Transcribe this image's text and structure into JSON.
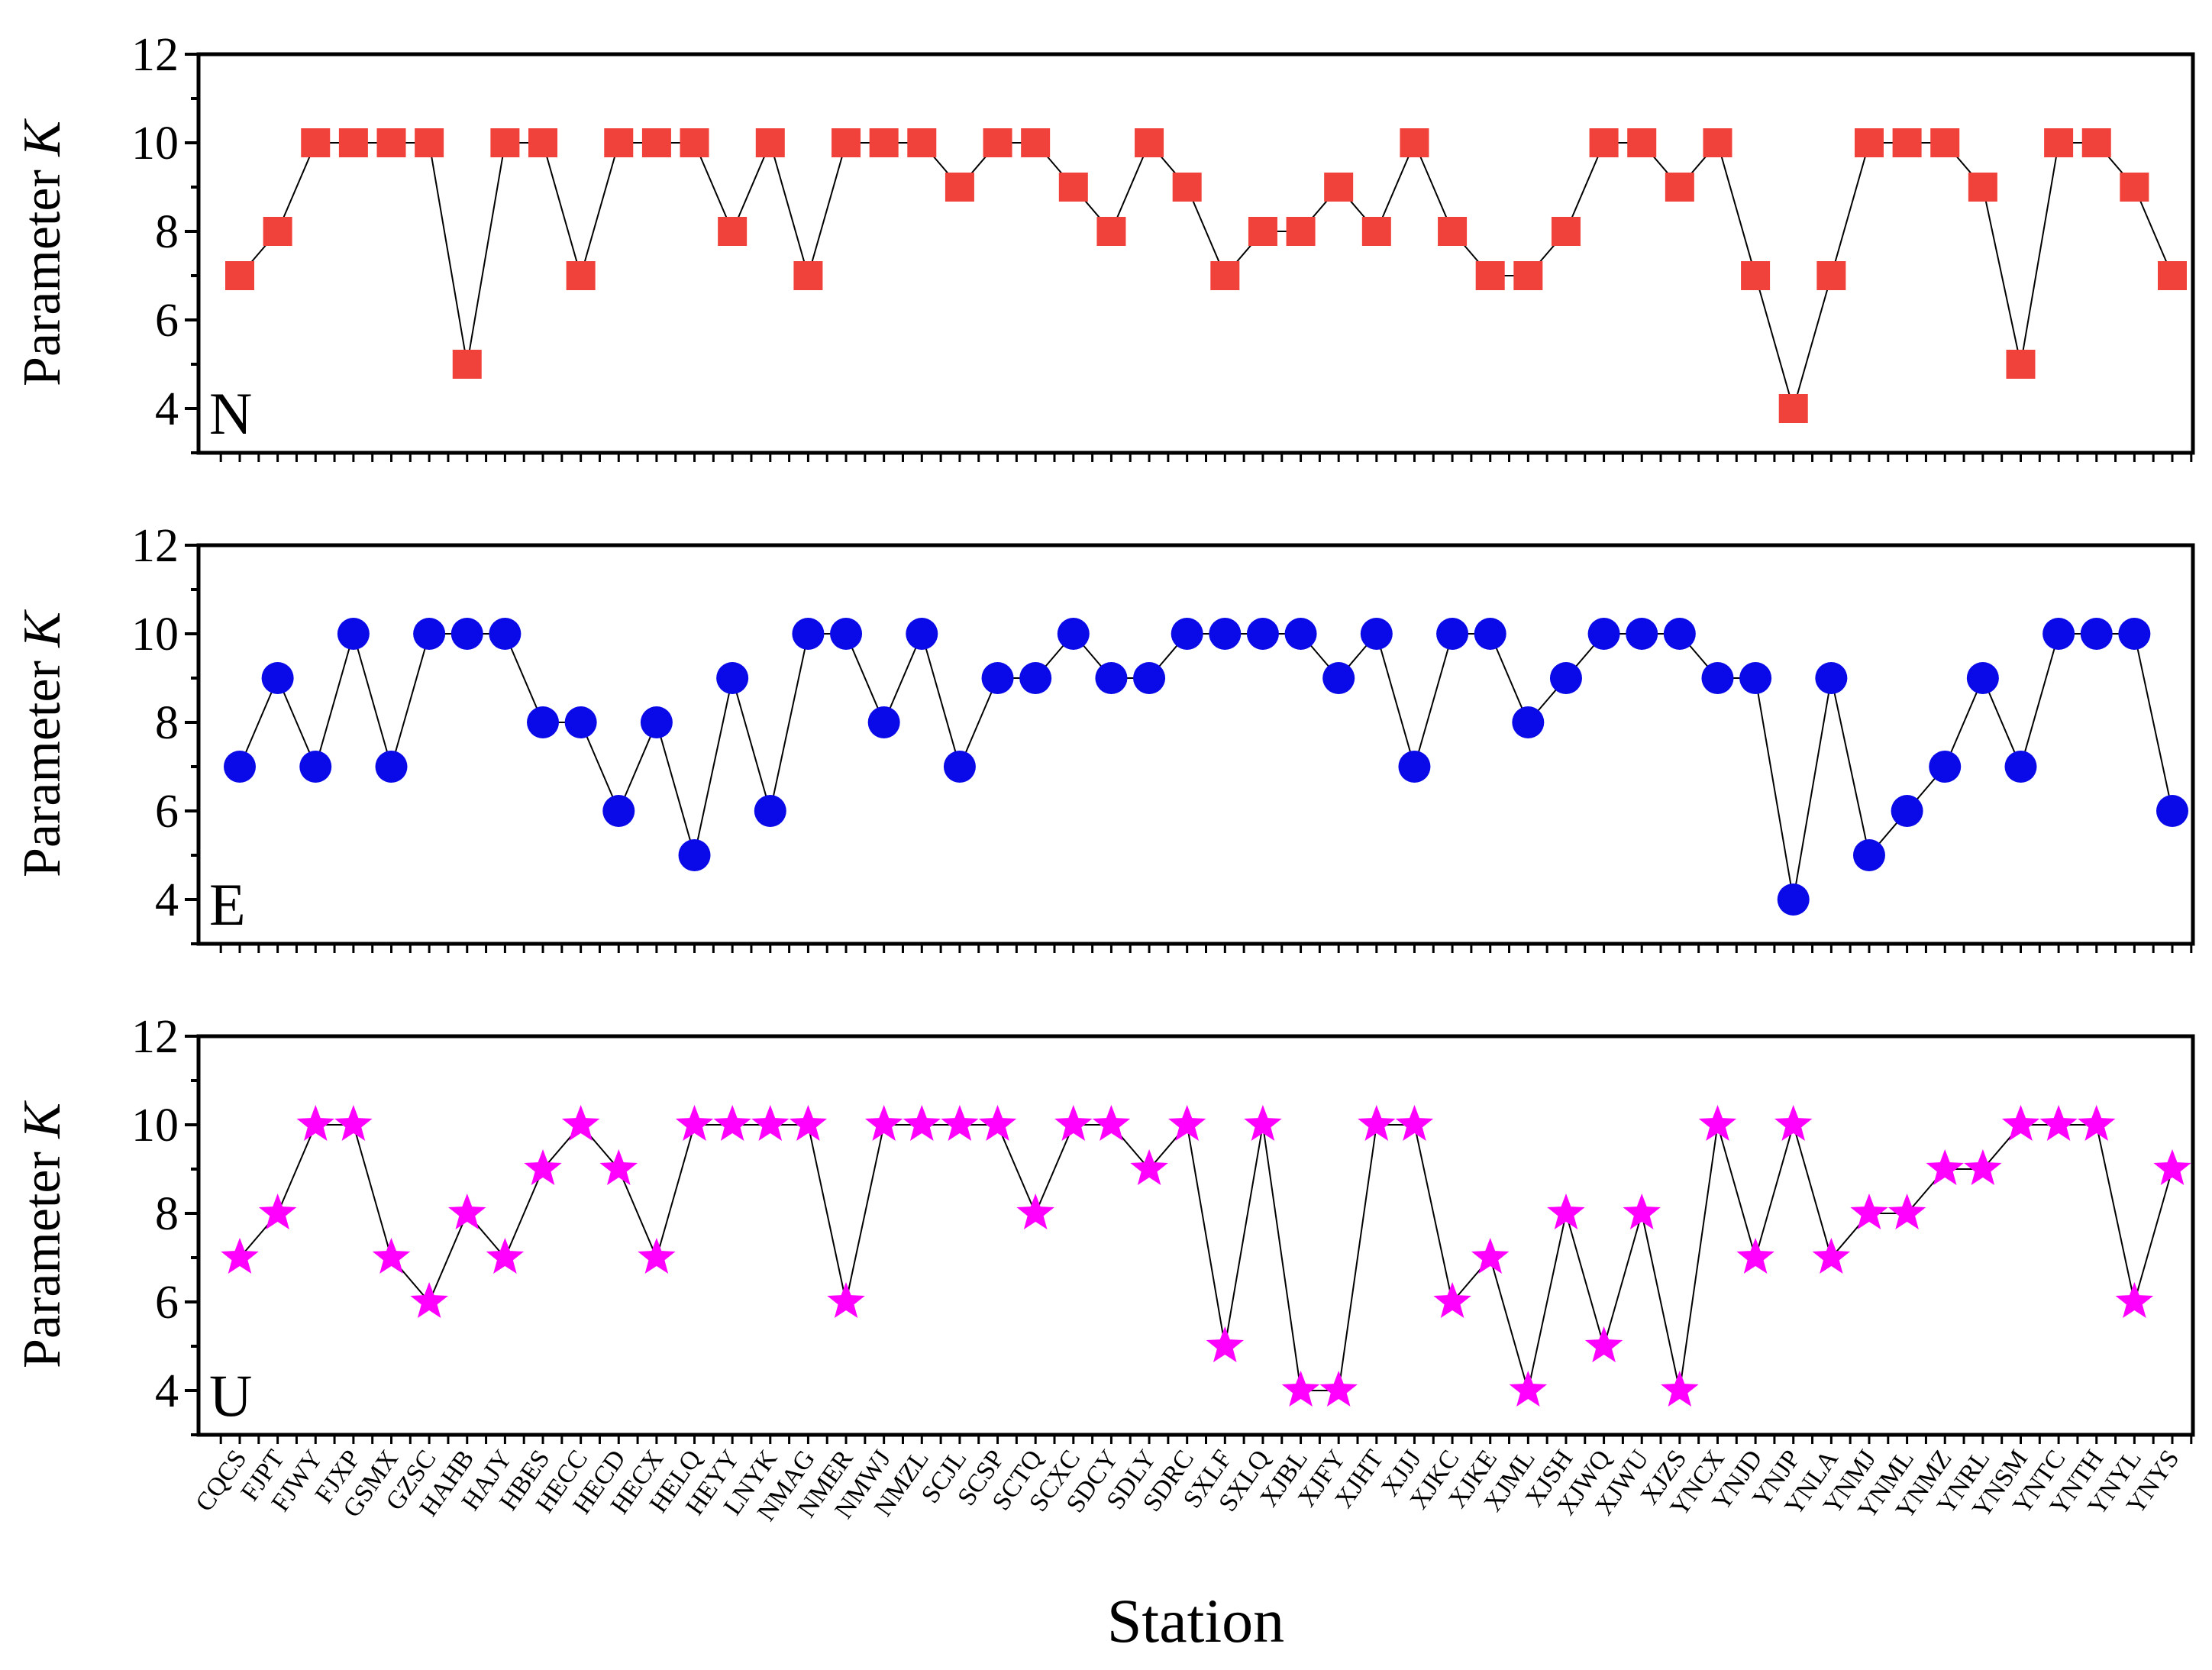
{
  "chart_data": [
    {
      "type": "line",
      "title": "",
      "component_label": "N",
      "ylabel": "Parameter",
      "ylabel_italic": "K",
      "xlabel": "",
      "ylim": [
        3,
        12
      ],
      "yticks": [
        4,
        6,
        8,
        10,
        12
      ],
      "marker": "square",
      "color": "#f0413a",
      "grid": false,
      "values": [
        7,
        8,
        10,
        10,
        10,
        10,
        5,
        10,
        10,
        7,
        10,
        10,
        10,
        8,
        10,
        7,
        10,
        10,
        10,
        9,
        10,
        10,
        9,
        8,
        10,
        9,
        7,
        8,
        8,
        9,
        8,
        10,
        8,
        7,
        7,
        8,
        10,
        10,
        9,
        10,
        7,
        4,
        7,
        10,
        10,
        10,
        9,
        5,
        10,
        10,
        9,
        7
      ]
    },
    {
      "type": "line",
      "title": "",
      "component_label": "E",
      "ylabel": "Parameter",
      "ylabel_italic": "K",
      "xlabel": "",
      "ylim": [
        3,
        12
      ],
      "yticks": [
        4,
        6,
        8,
        10,
        12
      ],
      "marker": "circle",
      "color": "#0a0ae8",
      "grid": false,
      "values": [
        7,
        9,
        7,
        10,
        7,
        10,
        10,
        10,
        8,
        8,
        6,
        8,
        5,
        9,
        6,
        10,
        10,
        8,
        10,
        7,
        9,
        9,
        10,
        9,
        9,
        10,
        10,
        10,
        10,
        9,
        10,
        7,
        10,
        10,
        8,
        9,
        10,
        10,
        10,
        9,
        9,
        4,
        9,
        5,
        6,
        7,
        9,
        7,
        10,
        10,
        10,
        6
      ]
    },
    {
      "type": "line",
      "title": "",
      "component_label": "U",
      "ylabel": "Parameter",
      "ylabel_italic": "K",
      "xlabel": "Station",
      "ylim": [
        3,
        12
      ],
      "yticks": [
        4,
        6,
        8,
        10,
        12
      ],
      "marker": "star",
      "color": "#ff00ff",
      "grid": false,
      "values": [
        7,
        8,
        10,
        10,
        7,
        6,
        8,
        7,
        9,
        10,
        9,
        7,
        10,
        10,
        10,
        10,
        6,
        10,
        10,
        10,
        10,
        8,
        10,
        10,
        9,
        10,
        5,
        10,
        4,
        4,
        10,
        10,
        6,
        7,
        4,
        8,
        5,
        8,
        4,
        10,
        7,
        10,
        7,
        8,
        8,
        9,
        9,
        10,
        10,
        10,
        6,
        9
      ]
    }
  ],
  "stations": [
    "CQCS",
    "FJPT",
    "FJWY",
    "FJXP",
    "GSMX",
    "GZSC",
    "HAHB",
    "HAJY",
    "HBES",
    "HECC",
    "HECD",
    "HECX",
    "HELQ",
    "HEYY",
    "LNYK",
    "NMAG",
    "NMER",
    "NMWJ",
    "NMZL",
    "SCJL",
    "SCSP",
    "SCTQ",
    "SCXC",
    "SDCY",
    "SDLY",
    "SDRC",
    "SXLF",
    "SXLQ",
    "XJBL",
    "XJFY",
    "XJHT",
    "XJJJ",
    "XJKC",
    "XJKE",
    "XJML",
    "XJSH",
    "XJWQ",
    "XJWU",
    "XJZS",
    "YNCX",
    "YNJD",
    "YNJP",
    "YNLA",
    "YNMJ",
    "YNML",
    "YNMZ",
    "YNRL",
    "YNSM",
    "YNTC",
    "YNTH",
    "YNYL",
    "YNYS"
  ]
}
